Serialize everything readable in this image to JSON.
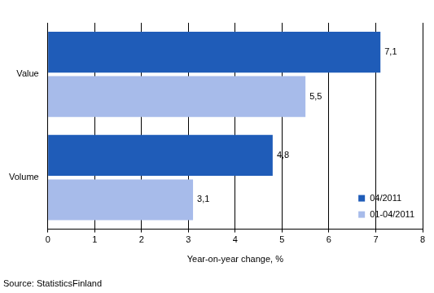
{
  "chart_data": {
    "type": "bar",
    "orientation": "horizontal",
    "categories": [
      "Value",
      "Volume"
    ],
    "series": [
      {
        "name": "04/2011",
        "color": "#1f5cb8",
        "values": [
          7.1,
          4.8
        ],
        "value_labels": [
          "7,1",
          "4,8"
        ]
      },
      {
        "name": "01-04/2011",
        "color": "#a7bbea",
        "values": [
          5.5,
          3.1
        ],
        "value_labels": [
          "5,5",
          "3,1"
        ]
      }
    ],
    "x_label": "Year-on-year change, %",
    "source": "Source: StatisticsFinland",
    "xlim": [
      0,
      8
    ],
    "xticks": [
      0,
      1,
      2,
      3,
      4,
      5,
      6,
      7,
      8
    ],
    "grid": true,
    "legend": "lower right",
    "data_labels": true
  }
}
